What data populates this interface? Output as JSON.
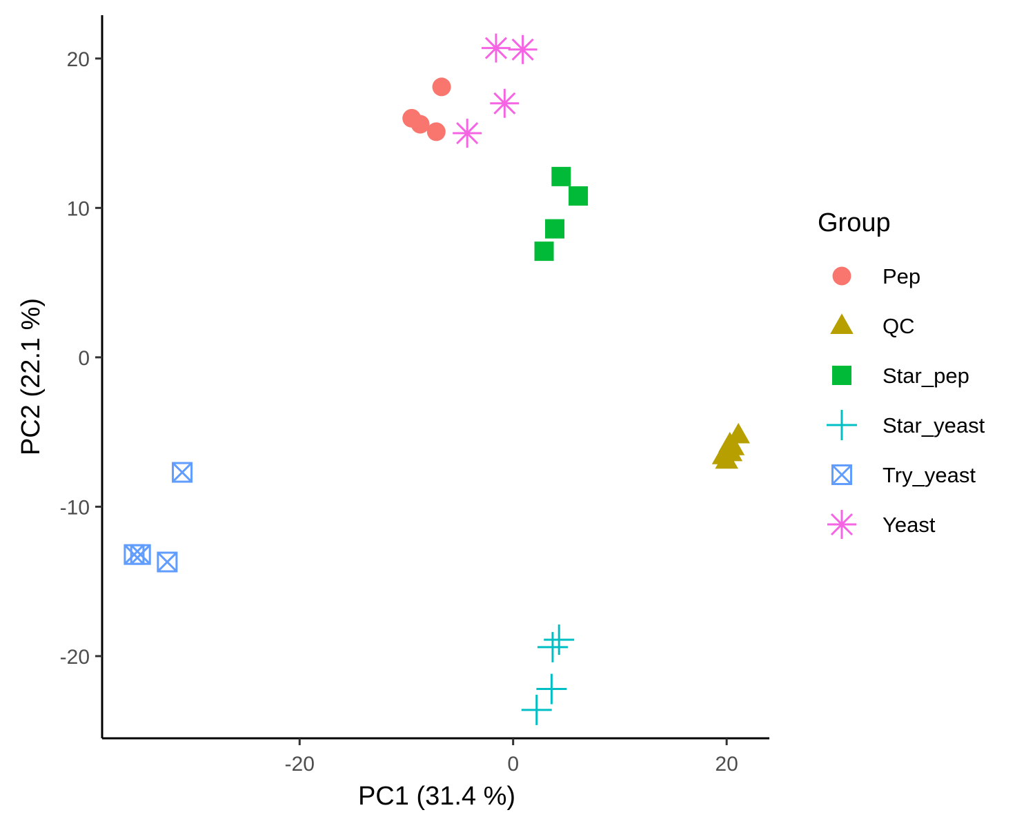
{
  "chart_data": {
    "type": "scatter",
    "title": "",
    "xlabel": "PC1 (31.4 %)",
    "ylabel": "PC2 (22.1 %)",
    "xlim": [
      -38.5,
      24
    ],
    "ylim": [
      -25.5,
      22.9
    ],
    "xticks": [
      -20,
      0,
      20
    ],
    "yticks": [
      -20,
      -10,
      0,
      10,
      20
    ],
    "xtick_labels": [
      "-20",
      "0",
      "20"
    ],
    "ytick_labels": [
      "-20",
      "-10",
      "0",
      "10",
      "20"
    ],
    "grid": false,
    "legend": {
      "title": "Group",
      "position": "right"
    },
    "series": [
      {
        "name": "Pep",
        "color": "#F8766D",
        "shape": "circle",
        "points": [
          [
            -6.7,
            18.1
          ],
          [
            -9.5,
            16.0
          ],
          [
            -8.7,
            15.6
          ],
          [
            -7.2,
            15.1
          ]
        ]
      },
      {
        "name": "QC",
        "color": "#B79F00",
        "shape": "triangle",
        "points": [
          [
            21.1,
            -5.2
          ],
          [
            20.3,
            -5.8
          ],
          [
            20.0,
            -6.3
          ],
          [
            19.7,
            -6.6
          ],
          [
            20.0,
            -6.9
          ],
          [
            20.4,
            -6.4
          ],
          [
            20.6,
            -6.0
          ]
        ]
      },
      {
        "name": "Star_pep",
        "color": "#00BA38",
        "shape": "square",
        "points": [
          [
            4.5,
            12.1
          ],
          [
            6.1,
            10.8
          ],
          [
            3.9,
            8.6
          ],
          [
            2.9,
            7.1
          ]
        ]
      },
      {
        "name": "Star_yeast",
        "color": "#00BFC4",
        "shape": "plus",
        "points": [
          [
            4.3,
            -18.9
          ],
          [
            3.7,
            -19.4
          ],
          [
            3.6,
            -22.2
          ],
          [
            2.2,
            -23.6
          ]
        ]
      },
      {
        "name": "Try_yeast",
        "color": "#619CFF",
        "shape": "square-x",
        "points": [
          [
            -31.0,
            -7.7
          ],
          [
            -35.5,
            -13.2
          ],
          [
            -34.9,
            -13.2
          ],
          [
            -32.4,
            -13.7
          ]
        ]
      },
      {
        "name": "Yeast",
        "color": "#F564E3",
        "shape": "asterisk",
        "points": [
          [
            -1.6,
            20.7
          ],
          [
            0.9,
            20.6
          ],
          [
            -0.8,
            17.0
          ],
          [
            -4.3,
            15.0
          ]
        ]
      }
    ]
  }
}
